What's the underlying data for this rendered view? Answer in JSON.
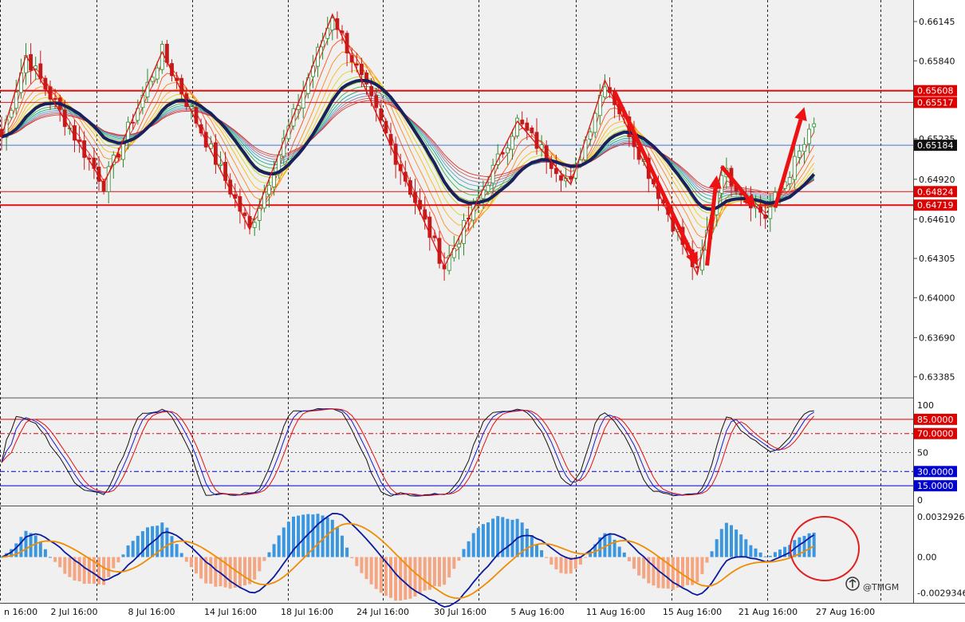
{
  "chart_data": {
    "type": "line",
    "subtype": "candlestick",
    "x_ticks": [
      "n 16:00",
      "2 Jul 16:00",
      "8 Jul 16:00",
      "14 Jul 16:00",
      "18 Jul 16:00",
      "24 Jul 16:00",
      "30 Jul 16:00",
      "5 Aug 16:00",
      "11 Aug 16:00",
      "15 Aug 16:00",
      "21 Aug 16:00",
      "27 Aug 16:00"
    ],
    "price_panel": {
      "ylim": [
        0.6324,
        0.663
      ],
      "y_ticks": [
        "0.66145",
        "0.65840",
        "0.65235",
        "0.64920",
        "0.64610",
        "0.64305",
        "0.64000",
        "0.63690",
        "0.63385"
      ],
      "last_price": "0.65184",
      "levels": [
        {
          "label": "0.65608",
          "value": 0.65608,
          "color": "#dd0000"
        },
        {
          "label": "0.65517",
          "value": 0.65517,
          "color": "#dd0000"
        },
        {
          "label": "0.64824",
          "value": 0.64824,
          "color": "#dd0000"
        },
        {
          "label": "0.64719",
          "value": 0.64719,
          "color": "#dd0000"
        }
      ],
      "zigzag": [
        {
          "i": 0,
          "p": 0.6525
        },
        {
          "i": 5,
          "p": 0.6588
        },
        {
          "i": 21,
          "p": 0.6488
        },
        {
          "i": 33,
          "p": 0.6591
        },
        {
          "i": 51,
          "p": 0.6453
        },
        {
          "i": 68,
          "p": 0.662
        },
        {
          "i": 91,
          "p": 0.6424
        },
        {
          "i": 106,
          "p": 0.6537
        },
        {
          "i": 117,
          "p": 0.6488
        },
        {
          "i": 124,
          "p": 0.6569
        },
        {
          "i": 143,
          "p": 0.6418
        },
        {
          "i": 148,
          "p": 0.65
        },
        {
          "i": 157,
          "p": 0.6463
        }
      ],
      "arrows": [
        {
          "from": {
            "i": 126,
            "p": 0.656
          },
          "to": {
            "i": 143,
            "p": 0.6425
          }
        },
        {
          "from": {
            "i": 145,
            "p": 0.6425
          },
          "to": {
            "i": 147,
            "p": 0.6495
          }
        },
        {
          "from": {
            "i": 148,
            "p": 0.6502
          },
          "to": {
            "i": 155,
            "p": 0.647
          }
        },
        {
          "from": {
            "i": 159,
            "p": 0.647
          },
          "to": {
            "i": 165,
            "p": 0.6548
          }
        }
      ],
      "colors": {
        "up_candle": "#2b8a2b",
        "down_candle": "#c41a1a",
        "ma": "#1a1f5e",
        "bid_line": "#4a6fd0",
        "zigzag": "#e01010",
        "arrow": "#ee1111"
      }
    },
    "stochastic_panel": {
      "ylim": [
        0,
        100
      ],
      "y_ticks": [
        "100",
        "50",
        "0"
      ],
      "levels": [
        {
          "label": "85.0000",
          "value": 85,
          "color": "#dd0000"
        },
        {
          "label": "70.0000",
          "value": 70,
          "color": "#dd0000"
        },
        {
          "label": "30.0000",
          "value": 30,
          "color": "#0000cc"
        },
        {
          "label": "15.0000",
          "value": 15,
          "color": "#0000cc"
        }
      ]
    },
    "macd_panel": {
      "ylim": [
        -0.0031,
        0.0035
      ],
      "y_ticks": [
        "0.0032926",
        "0.00",
        "-0.0029346"
      ],
      "colors": {
        "hist_up": "#3b96e0",
        "hist_down": "#f4a582",
        "macd": "#0a1aa0",
        "signal": "#f08c00"
      }
    }
  },
  "watermark": "@TMGM"
}
